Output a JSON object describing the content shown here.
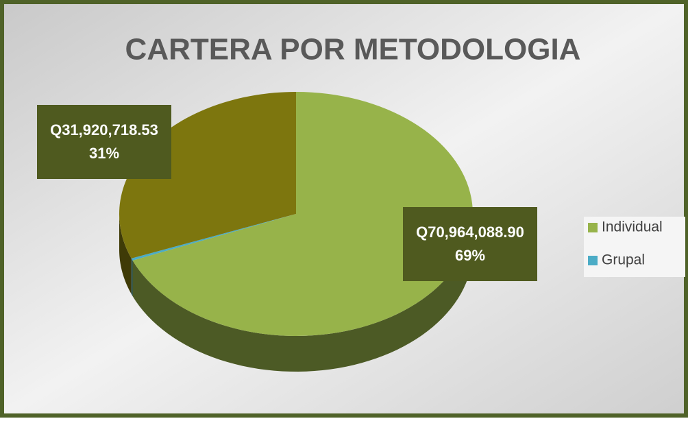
{
  "chart_data": {
    "type": "pie3d",
    "title": "CARTERA POR METODOLOGIA",
    "categories": [
      "Individual",
      "Grupal",
      null
    ],
    "values": [
      70964088.9,
      300000,
      31920718.53
    ],
    "value_labels": [
      "Q70,964,088.90",
      null,
      "Q31,920,718.53"
    ],
    "percent_labels": [
      "69%",
      null,
      "31%"
    ],
    "colors": [
      "#97b34a",
      "#4bacc6",
      "#7d760e"
    ],
    "legend": "right"
  }
}
